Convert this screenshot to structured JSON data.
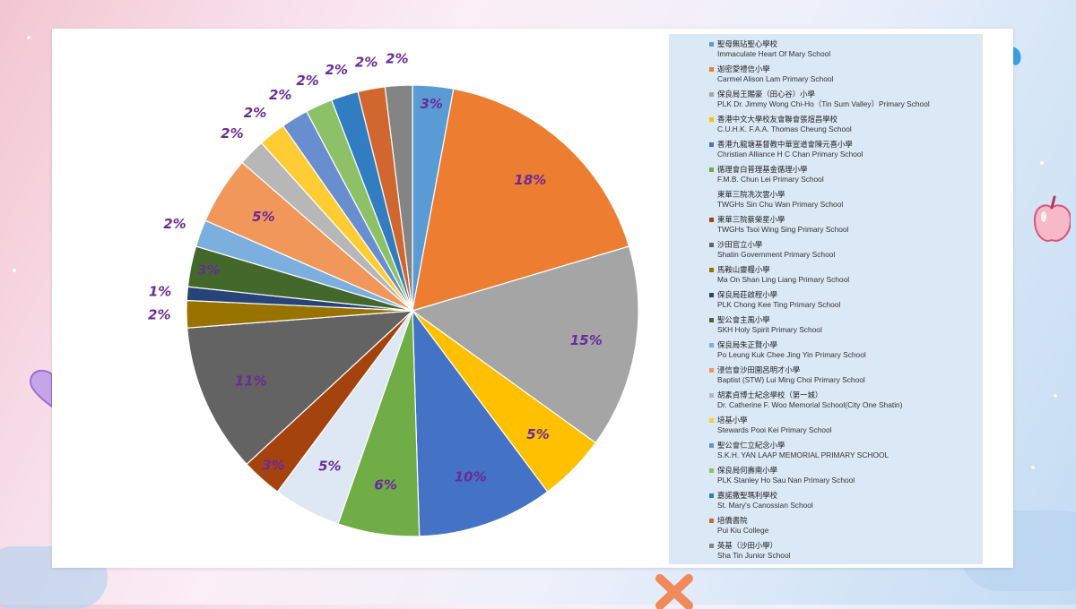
{
  "chart_data": {
    "type": "pie",
    "slices": [
      {
        "name": "聖母無玷聖心學校",
        "name_en": "Immaculate Heart Of Mary School",
        "value": 3,
        "label": "3%",
        "color": "#5b9bd5"
      },
      {
        "name": "迦密愛禮信小學",
        "name_en": "Carmel Alison Lam Primary School",
        "value": 18,
        "label": "18%",
        "color": "#ed7d31"
      },
      {
        "name": "保良局王賜豪（田心谷）小學",
        "name_en": "PLK Dr. Jimmy Wong Chi-Ho（Tin Sum Valley）Primary School",
        "value": 15,
        "label": "15%",
        "color": "#a5a5a5"
      },
      {
        "name": "香港中文大學校友會聯會張煊昌學校",
        "name_en": "C.U.H.K. F.A.A. Thomas Cheung School",
        "value": 5,
        "label": "5%",
        "color": "#ffc000"
      },
      {
        "name": "香港九龍塘基督教中華宣道會陳元喜小學",
        "name_en": "Christian Alliance H C Chan Primary School",
        "value": 10,
        "label": "10%",
        "color": "#4472c4"
      },
      {
        "name": "循理會白普理基金循理小學",
        "name_en": "F.M.B. Chun Lei Primary School",
        "value": 6,
        "label": "6%",
        "color": "#70ad47"
      },
      {
        "name": "東華三院冼次雲小學",
        "name_en": "TWGHs Sin Chu Wan Primary School",
        "value": 5,
        "label": "5%",
        "color": "#dde8f4"
      },
      {
        "name": "東華三院蔡榮星小學",
        "name_en": "TWGHs Tsoi Wing Sing Primary School",
        "value": 3,
        "label": "3%",
        "color": "#a5430f"
      },
      {
        "name": "沙田官立小學",
        "name_en": "Shatin Government Primary School",
        "value": 11,
        "label": "11%",
        "color": "#636363"
      },
      {
        "name": "馬鞍山靈糧小學",
        "name_en": "Ma On Shan Ling Liang Primary School",
        "value": 2,
        "label": "2%",
        "color": "#997300"
      },
      {
        "name": "保良局莊啟程小學",
        "name_en": "PLK Chong Kee Ting Primary School",
        "value": 1,
        "label": "1%",
        "color": "#264478"
      },
      {
        "name": "聖公會主風小學",
        "name_en": "SKH Holy Spirit Primary School",
        "value": 3,
        "label": "3%",
        "color": "#43682b"
      },
      {
        "name": "保良局朱正賢小學",
        "name_en": "Po Leung Kuk Chee Jing Yin Primary School",
        "value": 2,
        "label": "2%",
        "color": "#7cafdd"
      },
      {
        "name": "浸信會沙田圍呂明才小學",
        "name_en": "Baptist (STW) Lui Ming Choi Primary School",
        "value": 5,
        "label": "5%",
        "color": "#f1975a"
      },
      {
        "name": "胡素貞博士紀念學校（第一城）",
        "name_en": "Dr. Catherine F. Woo Memorial School(City One Shatin)",
        "value": 2,
        "label": "2%",
        "color": "#b7b7b7"
      },
      {
        "name": "培基小學",
        "name_en": "Stewards Pooi Kei Primary School",
        "value": 2,
        "label": "2%",
        "color": "#ffcd33"
      },
      {
        "name": "聖公會仁立紀念小學",
        "name_en": "S.K.H. YAN LAAP MEMORIAL PRIMARY SCHOOL",
        "value": 2,
        "label": "2%",
        "color": "#698ed0"
      },
      {
        "name": "保良局何壽南小學",
        "name_en": "PLK Stanley Ho Sau Nan Primary School",
        "value": 2,
        "label": "2%",
        "color": "#8cc168"
      },
      {
        "name": "嘉諾撒聖瑪利學校",
        "name_en": "St. Mary's Canossian School",
        "value": 2,
        "label": "2%",
        "color": "#327dc2"
      },
      {
        "name": "培僑書院",
        "name_en": "Pui Kiu College",
        "value": 2,
        "label": "2%",
        "color": "#d0672f"
      },
      {
        "name": "英基（沙田小學）",
        "name_en": "Sha Tin Junior School",
        "value": 2,
        "label": "2%",
        "color": "#848484"
      }
    ],
    "legend_position": "right"
  }
}
